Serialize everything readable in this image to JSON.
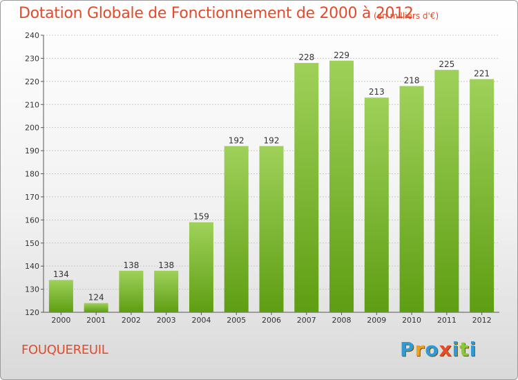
{
  "title": "Dotation Globale de Fonctionnement de 2000 à 2012",
  "unit_note": "(en milliers d'€)",
  "commune": "FOUQUEREUIL",
  "logo": {
    "letters": [
      "P",
      "r",
      "o",
      "x",
      "i",
      "t",
      "i"
    ],
    "colors": [
      "#2e9bd6",
      "#f0a020",
      "#2e9bd6",
      "#e84a2a",
      "#2e9bd6",
      "#8cc63f",
      "#2e9bd6"
    ]
  },
  "colors": {
    "bar_top": "#9fd15a",
    "bar_bottom": "#5e9e12",
    "accent": "#e24a2a"
  },
  "chart_data": {
    "type": "bar",
    "categories": [
      "2000",
      "2001",
      "2002",
      "2003",
      "2004",
      "2005",
      "2006",
      "2007",
      "2008",
      "2009",
      "2010",
      "2011",
      "2012"
    ],
    "values": [
      134,
      124,
      138,
      138,
      159,
      192,
      192,
      228,
      229,
      213,
      218,
      225,
      221
    ],
    "ylim": [
      120,
      240
    ],
    "yticks": [
      120,
      130,
      140,
      150,
      160,
      170,
      180,
      190,
      200,
      210,
      220,
      230,
      240
    ],
    "grid": true
  }
}
